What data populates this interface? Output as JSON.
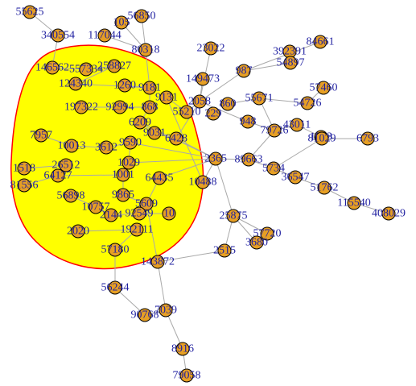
{
  "graph": {
    "colors": {
      "node_fill": "#e69f24",
      "label": "#1f1fa0",
      "edge": "#a9a9a9",
      "group_fill": "#ffff00",
      "group_stroke": "#ff0000"
    },
    "nodes": [
      {
        "id": "55625",
        "label": "55625"
      },
      {
        "id": "105",
        "label": "105"
      },
      {
        "id": "56850",
        "label": "56850"
      },
      {
        "id": "340554",
        "label": "340554"
      },
      {
        "id": "117044",
        "label": "117044"
      },
      {
        "id": "80318",
        "label": "80318"
      },
      {
        "id": "23022",
        "label": "23022"
      },
      {
        "id": "392391",
        "label": "392391"
      },
      {
        "id": "84661",
        "label": "84661"
      },
      {
        "id": "54897",
        "label": "54897"
      },
      {
        "id": "146562",
        "label": "146562"
      },
      {
        "id": "557334",
        "label": "557334"
      },
      {
        "id": "258827",
        "label": "258827"
      },
      {
        "id": "149473",
        "label": "149473"
      },
      {
        "id": "987",
        "label": "987"
      },
      {
        "id": "57460",
        "label": "57460"
      },
      {
        "id": "124340",
        "label": "124340"
      },
      {
        "id": "1260",
        "label": "1260"
      },
      {
        "id": "9181",
        "label": "9181"
      },
      {
        "id": "55671",
        "label": "55671"
      },
      {
        "id": "54726",
        "label": "54726"
      },
      {
        "id": "9131",
        "label": "9131"
      },
      {
        "id": "2058",
        "label": "2058"
      },
      {
        "id": "860",
        "label": "860"
      },
      {
        "id": "197322",
        "label": "197322"
      },
      {
        "id": "92994",
        "label": "92994"
      },
      {
        "id": "868",
        "label": "868"
      },
      {
        "id": "55210",
        "label": "55210"
      },
      {
        "id": "229",
        "label": "229"
      },
      {
        "id": "948",
        "label": "948"
      },
      {
        "id": "6209",
        "label": "6209"
      },
      {
        "id": "79726",
        "label": "79726"
      },
      {
        "id": "43011",
        "label": "43011"
      },
      {
        "id": "1543",
        "label": "1543"
      },
      {
        "id": "7957",
        "label": "7957"
      },
      {
        "id": "9031",
        "label": "9031"
      },
      {
        "id": "6428",
        "label": "6428"
      },
      {
        "id": "10013",
        "label": "10013"
      },
      {
        "id": "3612",
        "label": "3612"
      },
      {
        "id": "9590",
        "label": "9590"
      },
      {
        "id": "2365",
        "label": "2365"
      },
      {
        "id": "89663",
        "label": "89663"
      },
      {
        "id": "81029",
        "label": "81029"
      },
      {
        "id": "6793",
        "label": "6793"
      },
      {
        "id": "1029",
        "label": "1029"
      },
      {
        "id": "5734",
        "label": "5734"
      },
      {
        "id": "1518",
        "label": "1518"
      },
      {
        "id": "26512",
        "label": "26512"
      },
      {
        "id": "1001",
        "label": "1001"
      },
      {
        "id": "36547",
        "label": "36547"
      },
      {
        "id": "81556",
        "label": "81556"
      },
      {
        "id": "64127",
        "label": "64127"
      },
      {
        "id": "64435",
        "label": "64435"
      },
      {
        "id": "10488",
        "label": "10488"
      },
      {
        "id": "51762",
        "label": "51762"
      },
      {
        "id": "115540",
        "label": "115540"
      },
      {
        "id": "56898",
        "label": "56898"
      },
      {
        "id": "9865",
        "label": "9865"
      },
      {
        "id": "5609",
        "label": "5609"
      },
      {
        "id": "408029",
        "label": "408029"
      },
      {
        "id": "10757",
        "label": "10757"
      },
      {
        "id": "2144",
        "label": "2144"
      },
      {
        "id": "92549",
        "label": "92549"
      },
      {
        "id": "10",
        "label": "10"
      },
      {
        "id": "25875",
        "label": "25875"
      },
      {
        "id": "2020",
        "label": "2020"
      },
      {
        "id": "192111",
        "label": "192111"
      },
      {
        "id": "57720",
        "label": "57720"
      },
      {
        "id": "3680",
        "label": "3680"
      },
      {
        "id": "2515",
        "label": "2515"
      },
      {
        "id": "57180",
        "label": "57180"
      },
      {
        "id": "143872",
        "label": "143872"
      },
      {
        "id": "56244",
        "label": "56244"
      },
      {
        "id": "90768",
        "label": "90768"
      },
      {
        "id": "7039",
        "label": "7039"
      },
      {
        "id": "8916",
        "label": "8916"
      },
      {
        "id": "79058",
        "label": "79058"
      }
    ],
    "edges": [
      [
        "55625",
        "340554"
      ],
      [
        "340554",
        "146562"
      ],
      [
        "105",
        "80318"
      ],
      [
        "56850",
        "80318"
      ],
      [
        "117044",
        "80318"
      ],
      [
        "80318",
        "9181"
      ],
      [
        "23022",
        "2058"
      ],
      [
        "392391",
        "54897"
      ],
      [
        "84661",
        "987"
      ],
      [
        "54897",
        "987"
      ],
      [
        "149473",
        "2058"
      ],
      [
        "987",
        "2058"
      ],
      [
        "2058",
        "55210"
      ],
      [
        "2058",
        "6428"
      ],
      [
        "57460",
        "54726"
      ],
      [
        "54726",
        "55671"
      ],
      [
        "55671",
        "860"
      ],
      [
        "55671",
        "79726"
      ],
      [
        "948",
        "79726"
      ],
      [
        "948",
        "2058"
      ],
      [
        "79726",
        "43011"
      ],
      [
        "79726",
        "89663"
      ],
      [
        "1543",
        "43011"
      ],
      [
        "2365",
        "89663"
      ],
      [
        "89663",
        "5734"
      ],
      [
        "81029",
        "5734"
      ],
      [
        "81029",
        "6793"
      ],
      [
        "5734",
        "36547"
      ],
      [
        "36547",
        "51762"
      ],
      [
        "51762",
        "115540"
      ],
      [
        "115540",
        "408029"
      ],
      [
        "2365",
        "6428"
      ],
      [
        "2365",
        "10488"
      ],
      [
        "2365",
        "25875"
      ],
      [
        "25875",
        "57720"
      ],
      [
        "25875",
        "3680"
      ],
      [
        "25875",
        "2515"
      ],
      [
        "2515",
        "143872"
      ],
      [
        "143872",
        "7039"
      ],
      [
        "10488",
        "9131"
      ],
      [
        "9131",
        "55210"
      ],
      [
        "57180",
        "56244"
      ],
      [
        "56244",
        "90768"
      ],
      [
        "7039",
        "90768"
      ],
      [
        "7039",
        "8916"
      ],
      [
        "8916",
        "79058"
      ],
      [
        "6209",
        "2365"
      ],
      [
        "1029",
        "2365"
      ],
      [
        "5609",
        "143872"
      ],
      [
        "124340",
        "9181"
      ],
      [
        "1260",
        "9181"
      ],
      [
        "9181",
        "868"
      ],
      [
        "92994",
        "868"
      ],
      [
        "868",
        "6209"
      ],
      [
        "6209",
        "9031"
      ],
      [
        "9031",
        "6428"
      ],
      [
        "197322",
        "92994"
      ],
      [
        "7957",
        "10013"
      ],
      [
        "10013",
        "3612"
      ],
      [
        "3612",
        "9590"
      ],
      [
        "9590",
        "1029"
      ],
      [
        "1029",
        "1001"
      ],
      [
        "1001",
        "9865"
      ],
      [
        "9865",
        "5609"
      ],
      [
        "5609",
        "64435"
      ],
      [
        "64435",
        "2365"
      ],
      [
        "1518",
        "26512"
      ],
      [
        "26512",
        "64127"
      ],
      [
        "81556",
        "64127"
      ],
      [
        "64127",
        "1001"
      ],
      [
        "56898",
        "10757"
      ],
      [
        "10757",
        "2144"
      ],
      [
        "2144",
        "92549"
      ],
      [
        "92549",
        "10"
      ],
      [
        "2020",
        "192111"
      ],
      [
        "192111",
        "57180"
      ],
      [
        "146562",
        "557334"
      ],
      [
        "557334",
        "258827"
      ],
      [
        "258827",
        "124340"
      ],
      [
        "9590",
        "2365"
      ]
    ]
  }
}
